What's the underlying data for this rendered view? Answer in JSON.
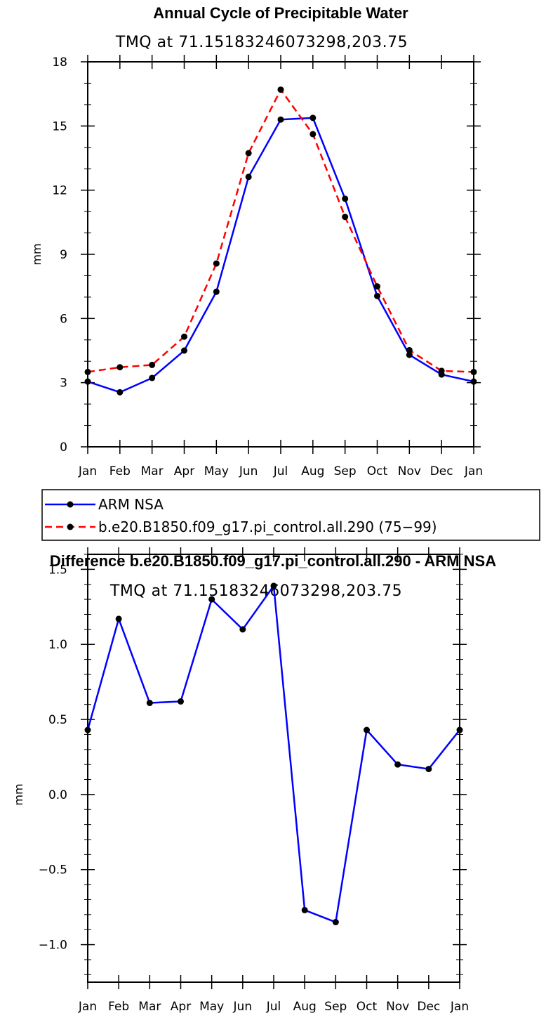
{
  "chart_data": [
    {
      "type": "line",
      "title": "Annual Cycle of Precipitable Water",
      "subtitle": "TMQ at 71.15183246073298,203.75",
      "xlabel": "",
      "ylabel": "mm",
      "categories": [
        "Jan",
        "Feb",
        "Mar",
        "Apr",
        "May",
        "Jun",
        "Jul",
        "Aug",
        "Sep",
        "Oct",
        "Nov",
        "Dec",
        "Jan"
      ],
      "ylim": [
        0,
        18
      ],
      "yticks": [
        "0",
        "3",
        "6",
        "9",
        "12",
        "15",
        "18"
      ],
      "grid": false,
      "legend_placement": "bottom",
      "series": [
        {
          "name": "ARM NSA",
          "color": "#0000ff",
          "line_style": "solid",
          "values": [
            3.05,
            2.55,
            3.22,
            4.5,
            7.25,
            12.62,
            15.3,
            15.38,
            11.6,
            7.05,
            4.3,
            3.38,
            3.05
          ]
        },
        {
          "name": "b.e20.B1850.f09_g17.pi_control.all.290 (75−99)",
          "color": "#ff0000",
          "line_style": "dashed",
          "values": [
            3.5,
            3.72,
            3.83,
            5.15,
            8.57,
            13.73,
            16.7,
            14.62,
            10.75,
            7.5,
            4.52,
            3.55,
            3.5
          ]
        }
      ]
    },
    {
      "type": "line",
      "title": "Difference b.e20.B1850.f09_g17.pi_control.all.290 - ARM NSA",
      "subtitle": "TMQ at 71.15183246073298,203.75",
      "xlabel": "",
      "ylabel": "mm",
      "categories": [
        "Jan",
        "Feb",
        "Mar",
        "Apr",
        "May",
        "Jun",
        "Jul",
        "Aug",
        "Sep",
        "Oct",
        "Nov",
        "Dec",
        "Jan"
      ],
      "ylim": [
        -1.25,
        1.6
      ],
      "yticks": [
        "−1.0",
        "−0.5",
        "0.0",
        "0.5",
        "1.0",
        "1.5"
      ],
      "grid": false,
      "series": [
        {
          "color": "#0000ff",
          "line_style": "solid",
          "values": [
            0.43,
            1.17,
            0.61,
            0.62,
            1.3,
            1.1,
            1.39,
            -0.77,
            -0.85,
            0.43,
            0.2,
            0.17,
            0.43
          ]
        }
      ]
    }
  ]
}
